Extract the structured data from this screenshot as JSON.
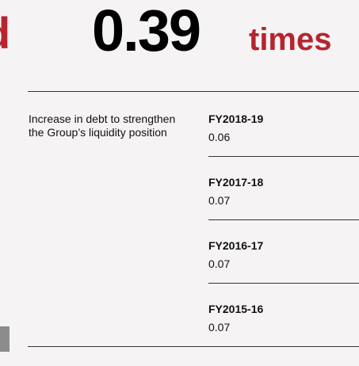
{
  "header": {
    "cut_text": "d",
    "value": "0.39",
    "unit": "times"
  },
  "description": "Increase in debt to strengthen the Group’s liquidity position",
  "history": [
    {
      "year": "FY2018-19",
      "value": "0.06"
    },
    {
      "year": "FY2017-18",
      "value": "0.07"
    },
    {
      "year": "FY2016-17",
      "value": "0.07"
    },
    {
      "year": "FY2015-16",
      "value": "0.07"
    }
  ]
}
